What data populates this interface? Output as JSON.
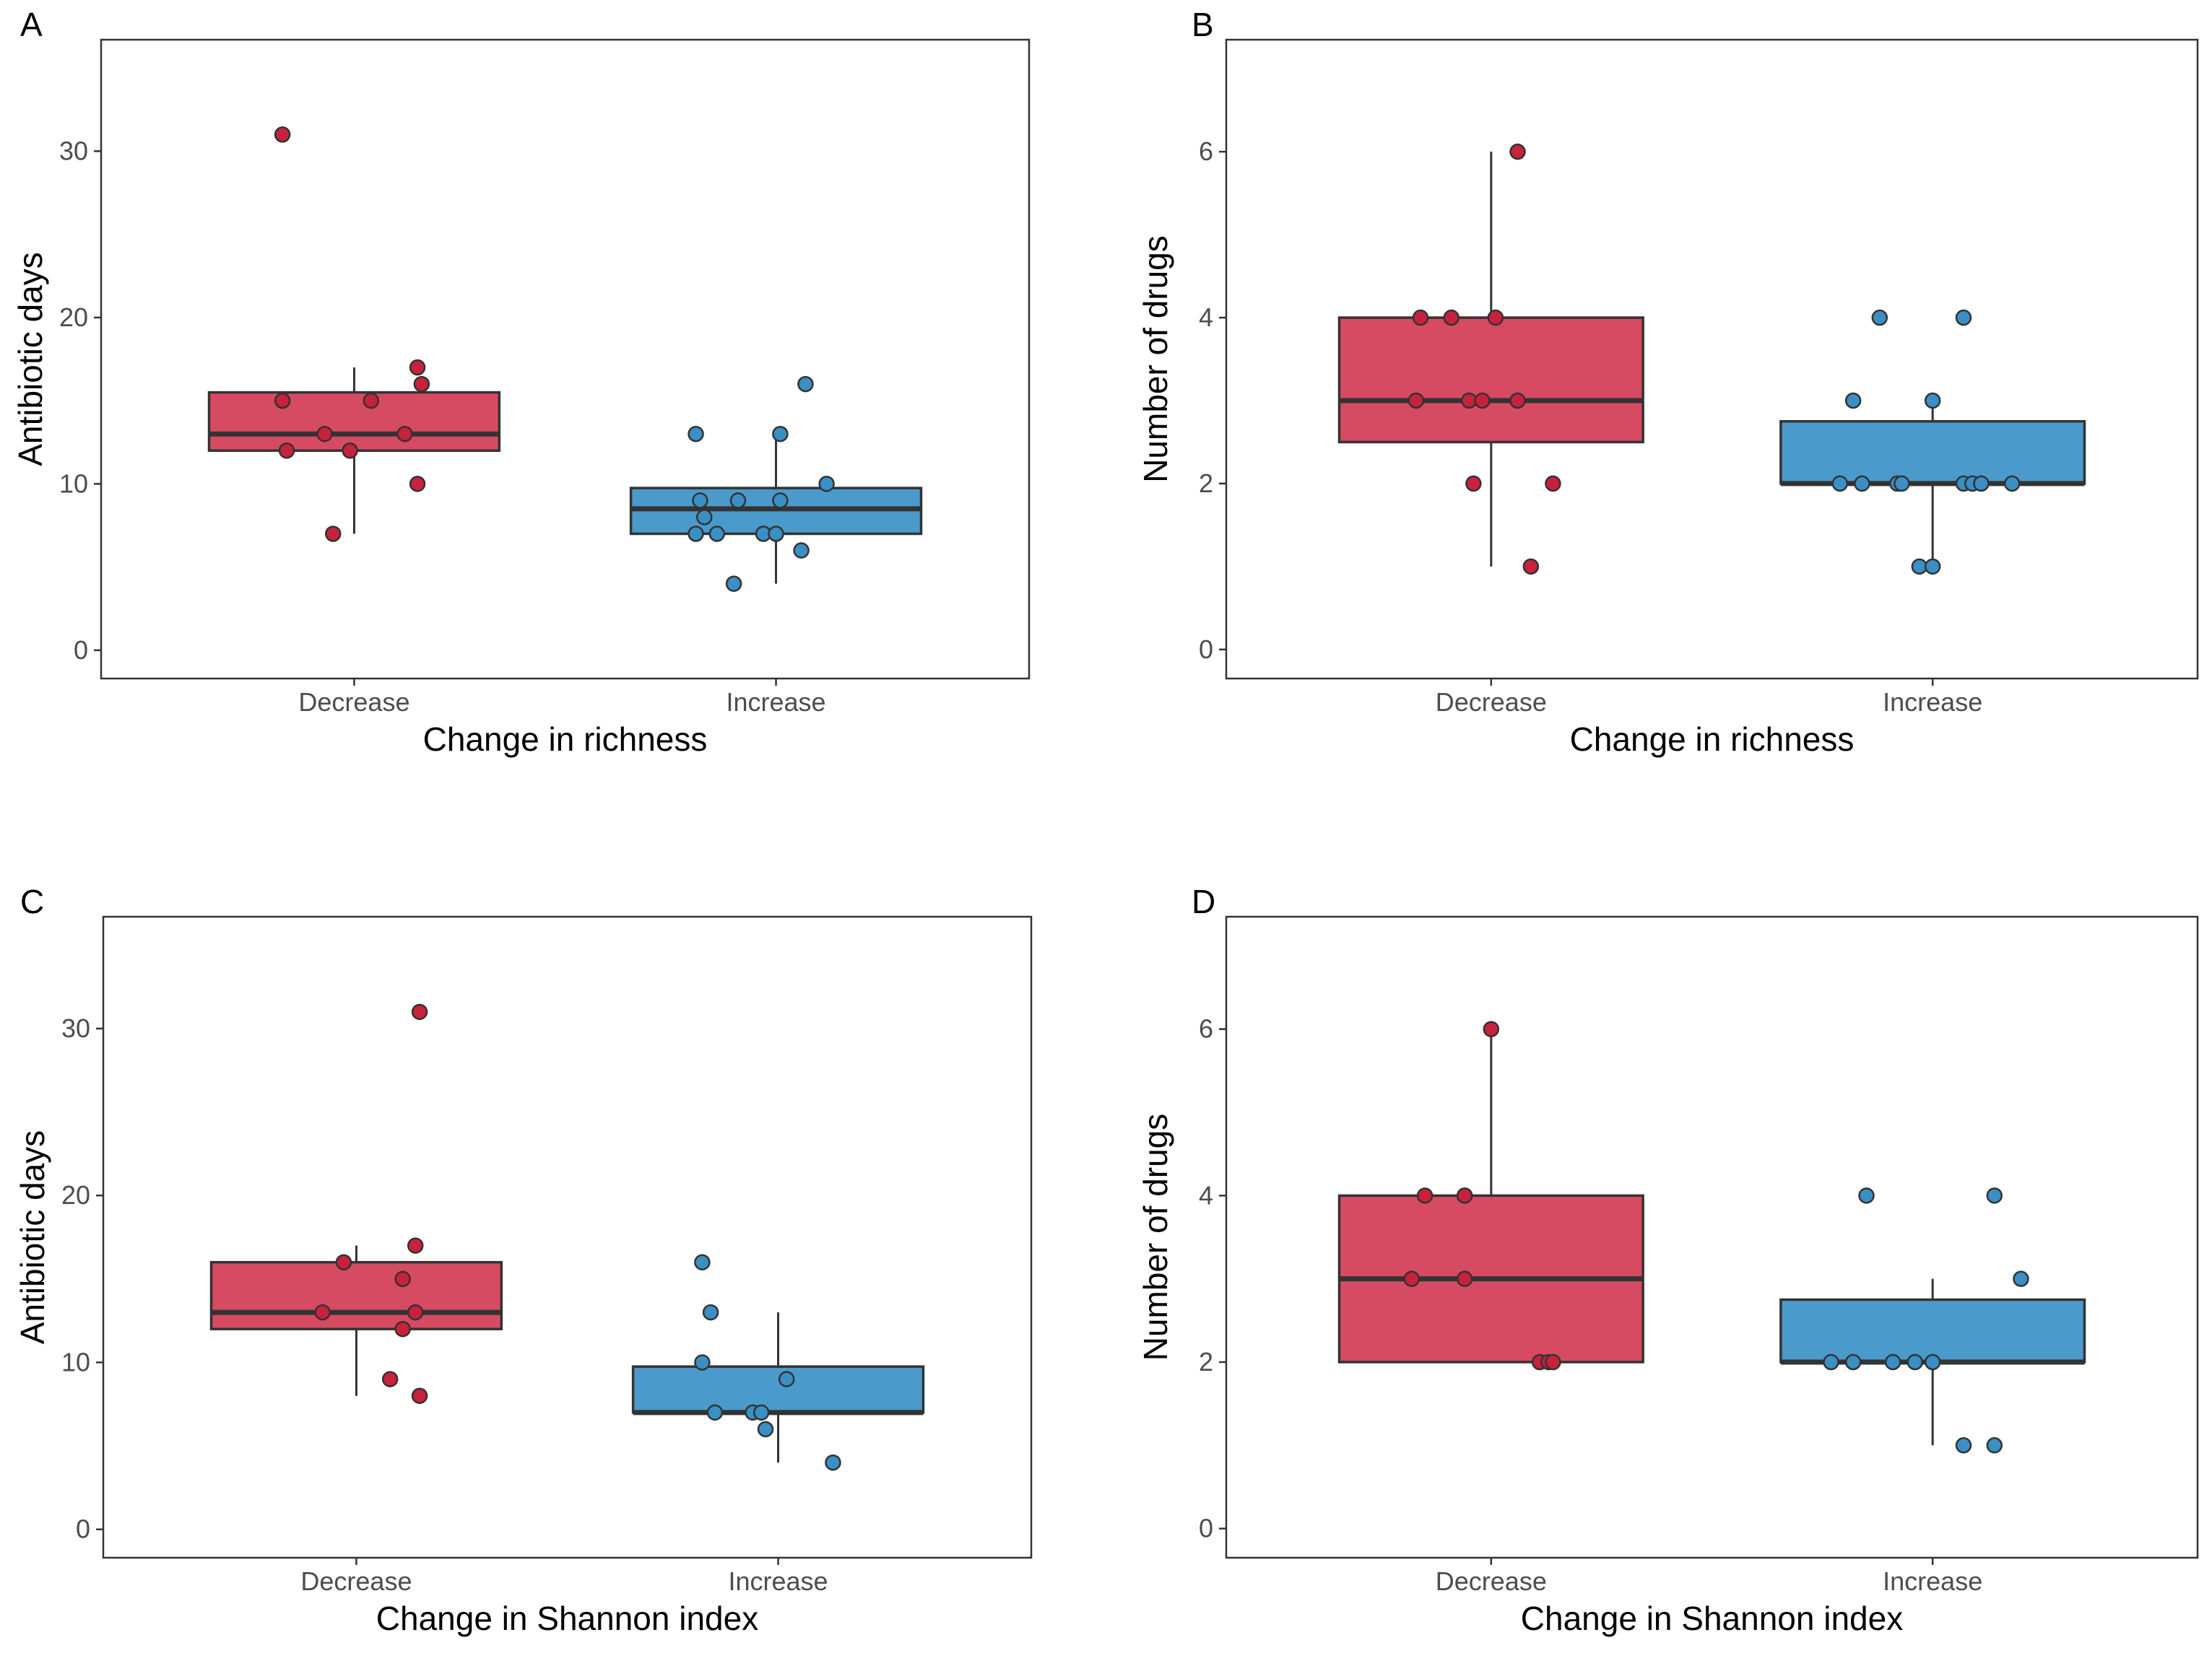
{
  "colors": {
    "decrease": "#d64b62",
    "increase": "#4a9acb",
    "decrease_point": "#c8213c",
    "increase_point": "#3a8fc4"
  },
  "chart_data": [
    {
      "panel_label": "A",
      "type": "box",
      "xlabel": "Change in richness",
      "ylabel": "Antibiotic days",
      "ylim": [
        -1.7,
        36.7
      ],
      "yticks": [
        "0",
        "10",
        "20",
        "30"
      ],
      "categories": [
        "Decrease",
        "Increase"
      ],
      "boxes": [
        {
          "category": "Decrease",
          "whisker_low": 7,
          "q1": 12,
          "median": 13,
          "q3": 15.5,
          "whisker_high": 17
        },
        {
          "category": "Increase",
          "whisker_low": 4,
          "q1": 7,
          "median": 8.5,
          "q3": 9.75,
          "whisker_high": 13
        }
      ],
      "points": [
        {
          "category": "Decrease",
          "values": [
            31,
            15,
            12,
            13,
            12,
            15,
            7,
            13,
            17,
            16,
            10
          ],
          "jitter": [
            -0.17,
            -0.17,
            -0.16,
            -0.07,
            -0.01,
            0.04,
            -0.05,
            0.12,
            0.15,
            0.16,
            0.15
          ]
        },
        {
          "category": "Increase",
          "values": [
            13,
            9,
            8,
            7,
            7,
            9,
            4,
            13,
            9,
            7,
            7,
            6,
            16,
            10
          ],
          "jitter": [
            -0.19,
            -0.18,
            -0.17,
            -0.19,
            -0.14,
            -0.09,
            -0.1,
            0.01,
            0.01,
            -0.03,
            0.0,
            0.06,
            0.07,
            0.12
          ]
        }
      ]
    },
    {
      "panel_label": "B",
      "type": "box",
      "xlabel": "Change in richness",
      "ylabel": "Number of drugs",
      "ylim": [
        -0.35,
        7.35
      ],
      "yticks": [
        "0",
        "2",
        "4",
        "6"
      ],
      "categories": [
        "Decrease",
        "Increase"
      ],
      "boxes": [
        {
          "category": "Decrease",
          "whisker_low": 1,
          "q1": 2.5,
          "median": 3,
          "q3": 4,
          "whisker_high": 6
        },
        {
          "category": "Increase",
          "whisker_low": 1,
          "q1": 2,
          "median": 2,
          "q3": 2.75,
          "whisker_high": 3
        }
      ],
      "points": [
        {
          "category": "Decrease",
          "values": [
            6,
            4,
            4,
            4,
            3,
            3,
            3,
            3,
            3,
            2,
            2,
            1
          ],
          "jitter": [
            0.06,
            -0.16,
            -0.09,
            0.01,
            -0.17,
            -0.05,
            -0.02,
            0.06,
            0.06,
            -0.04,
            0.14,
            0.09
          ]
        },
        {
          "category": "Increase",
          "values": [
            4,
            4,
            3,
            3,
            2,
            2,
            2,
            2,
            2,
            2,
            2,
            2,
            1,
            1
          ],
          "jitter": [
            -0.12,
            0.07,
            -0.18,
            0.0,
            -0.21,
            -0.16,
            -0.08,
            -0.07,
            0.07,
            0.09,
            0.11,
            0.18,
            -0.03,
            0.0
          ]
        }
      ]
    },
    {
      "panel_label": "C",
      "type": "box",
      "xlabel": "Change in Shannon index",
      "ylabel": "Antibiotic days",
      "ylim": [
        -1.7,
        36.7
      ],
      "yticks": [
        "0",
        "10",
        "20",
        "30"
      ],
      "categories": [
        "Decrease",
        "Increase"
      ],
      "boxes": [
        {
          "category": "Decrease",
          "whisker_low": 8,
          "q1": 12,
          "median": 13,
          "q3": 16,
          "whisker_high": 17
        },
        {
          "category": "Increase",
          "whisker_low": 4,
          "q1": 7,
          "median": 7,
          "q3": 9.75,
          "whisker_high": 13
        }
      ],
      "points": [
        {
          "category": "Decrease",
          "values": [
            31,
            16,
            13,
            9,
            17,
            15,
            12,
            13,
            8
          ],
          "jitter": [
            0.15,
            -0.03,
            -0.08,
            0.08,
            0.14,
            0.11,
            0.11,
            0.14,
            0.15
          ]
        },
        {
          "category": "Increase",
          "values": [
            16,
            13,
            10,
            7,
            7,
            7,
            6,
            9,
            4
          ],
          "jitter": [
            -0.18,
            -0.16,
            -0.18,
            -0.15,
            -0.06,
            -0.04,
            -0.03,
            0.02,
            0.13
          ]
        }
      ]
    },
    {
      "panel_label": "D",
      "type": "box",
      "xlabel": "Change in Shannon index",
      "ylabel": "Number of drugs",
      "ylim": [
        -0.35,
        7.35
      ],
      "yticks": [
        "0",
        "2",
        "4",
        "6"
      ],
      "categories": [
        "Decrease",
        "Increase"
      ],
      "boxes": [
        {
          "category": "Decrease",
          "whisker_low": 2,
          "q1": 2,
          "median": 3,
          "q3": 4,
          "whisker_high": 6
        },
        {
          "category": "Increase",
          "whisker_low": 1,
          "q1": 2,
          "median": 2,
          "q3": 2.75,
          "whisker_high": 3
        }
      ],
      "points": [
        {
          "category": "Decrease",
          "values": [
            6,
            4,
            4,
            4,
            3,
            3,
            2,
            2,
            2
          ],
          "jitter": [
            0.0,
            -0.15,
            -0.06,
            -0.06,
            -0.18,
            -0.06,
            0.11,
            0.13,
            0.14
          ]
        },
        {
          "category": "Increase",
          "values": [
            4,
            4,
            3,
            2,
            2,
            2,
            2,
            2,
            1,
            1
          ],
          "jitter": [
            -0.15,
            0.14,
            0.2,
            -0.23,
            -0.18,
            -0.09,
            -0.04,
            0.0,
            0.07,
            0.14
          ]
        }
      ]
    }
  ]
}
